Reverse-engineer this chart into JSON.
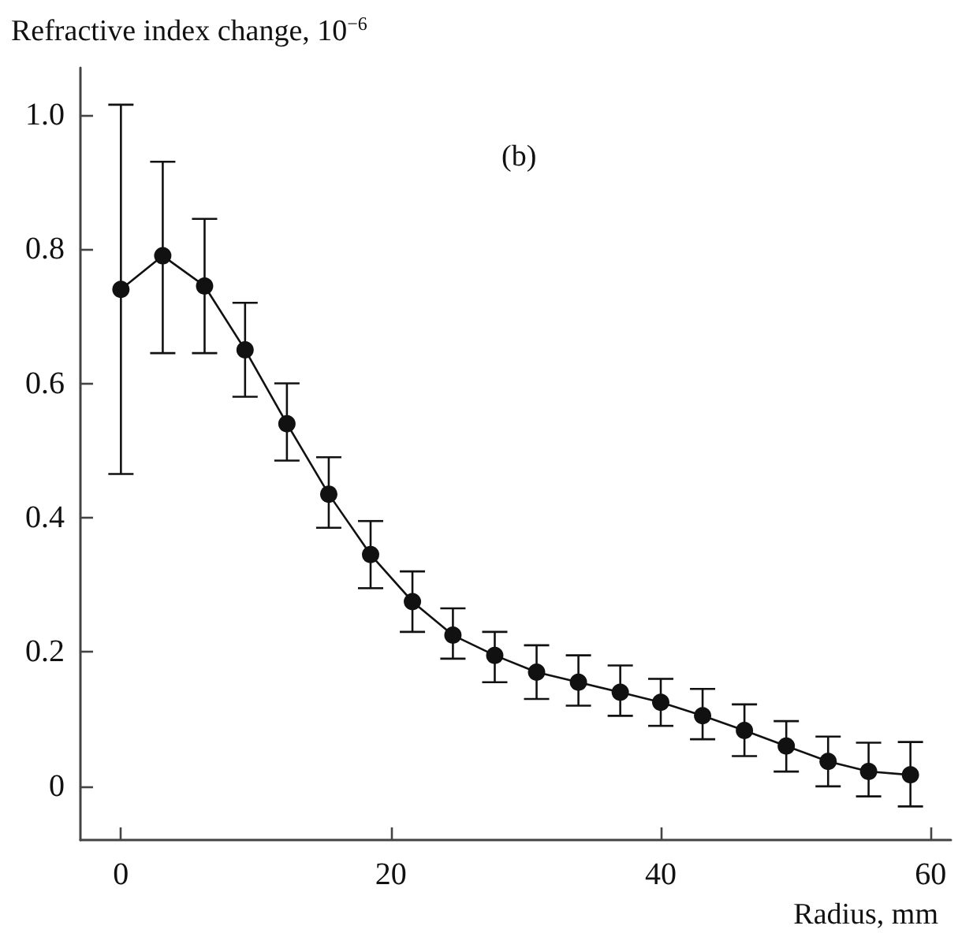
{
  "chart_data": {
    "type": "line",
    "ylabel": "Refractive index change, 10$^{−6}$",
    "xlabel": "Radius, mm",
    "annotations": [
      "(b)"
    ],
    "x": [
      0,
      3.1,
      6.2,
      9.2,
      12.3,
      15.4,
      18.5,
      21.6,
      24.6,
      27.7,
      30.8,
      33.9,
      37.0,
      40.0,
      43.1,
      46.2,
      49.3,
      52.4,
      55.4,
      58.5
    ],
    "series": [
      {
        "color": "#111111",
        "values": [
          0.74,
          0.79,
          0.745,
          0.65,
          0.54,
          0.435,
          0.345,
          0.275,
          0.225,
          0.195,
          0.17,
          0.155,
          0.14,
          0.125,
          0.105,
          0.083,
          0.06,
          0.037,
          0.022,
          0.017
        ],
        "errors": [
          [
            0.465,
            1.015
          ],
          [
            0.645,
            0.93
          ],
          [
            0.645,
            0.845
          ],
          [
            0.58,
            0.72
          ],
          [
            0.485,
            0.6
          ],
          [
            0.385,
            0.49
          ],
          [
            0.295,
            0.395
          ],
          [
            0.23,
            0.32
          ],
          [
            0.19,
            0.265
          ],
          [
            0.155,
            0.23
          ],
          [
            0.13,
            0.21
          ],
          [
            0.12,
            0.195
          ],
          [
            0.105,
            0.18
          ],
          [
            0.09,
            0.16
          ],
          [
            0.07,
            0.145
          ],
          [
            0.045,
            0.122
          ],
          [
            0.022,
            0.097
          ],
          [
            0.0,
            0.074
          ],
          [
            -0.015,
            0.065
          ],
          [
            -0.03,
            0.066
          ]
        ]
      }
    ],
    "xlim": [
      -3,
      61.5
    ],
    "xticks": [
      0,
      20,
      40,
      60
    ],
    "ylim": [
      -0.08,
      1.07
    ],
    "yticks": [
      0,
      0.2,
      0.4,
      0.6,
      0.8,
      {
        "value": 1,
        "label": "1.0"
      }
    ],
    "marker": "circle",
    "line_style": "solid",
    "grid": false
  }
}
